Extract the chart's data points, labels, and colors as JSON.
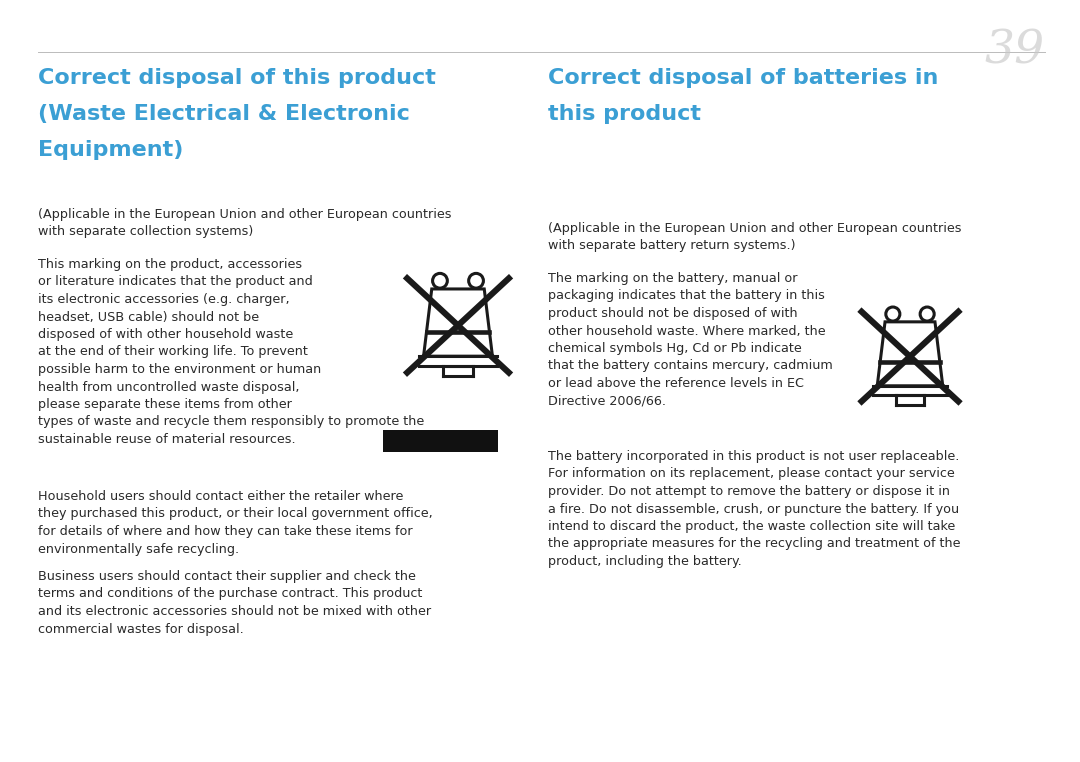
{
  "page_number": "39",
  "background_color": "#ffffff",
  "header_color": "#3b9fd4",
  "text_color": "#2a2a2a",
  "page_num_color": "#c8c8c8",
  "left_title_line1": "Correct disposal of this product",
  "left_title_line2": "(Waste Electrical & Electronic",
  "left_title_line3": "Equipment)",
  "right_title_line1": "Correct disposal of batteries in",
  "right_title_line2": "this product",
  "left_para1": "(Applicable in the European Union and other European countries\nwith separate collection systems)",
  "left_para2": "This marking on the product, accessories\nor literature indicates that the product and\nits electronic accessories (e.g. charger,\nheadset, USB cable) should not be\ndisposed of with other household waste\nat the end of their working life. To prevent\npossible harm to the environment or human\nhealth from uncontrolled waste disposal,\nplease separate these items from other\ntypes of waste and recycle them responsibly to promote the\nsustainable reuse of material resources.",
  "left_para3": "Household users should contact either the retailer where\nthey purchased this product, or their local government office,\nfor details of where and how they can take these items for\nenvironmentally safe recycling.",
  "left_para4": "Business users should contact their supplier and check the\nterms and conditions of the purchase contract. This product\nand its electronic accessories should not be mixed with other\ncommercial wastes for disposal.",
  "right_para1": "(Applicable in the European Union and other European countries\nwith separate battery return systems.)",
  "right_para2": "The marking on the battery, manual or\npackaging indicates that the battery in this\nproduct should not be disposed of with\nother household waste. Where marked, the\nchemical symbols Hg, Cd or Pb indicate\nthat the battery contains mercury, cadmium\nor lead above the reference levels in EC\nDirective 2006/66.",
  "right_para3": "The battery incorporated in this product is not user replaceable.\nFor information on its replacement, please contact your service\nprovider. Do not attempt to remove the battery or dispose it in\na fire. Do not disassemble, crush, or puncture the battery. If you\nintend to discard the product, the waste collection site will take\nthe appropriate measures for the recycling and treatment of the\nproduct, including the battery.",
  "title_fontsize": 16,
  "body_fontsize": 9.2,
  "page_num_fontsize": 34,
  "icon_color": "#1a1a1a",
  "rect_color": "#111111",
  "divider_color": "#bbbbbb"
}
